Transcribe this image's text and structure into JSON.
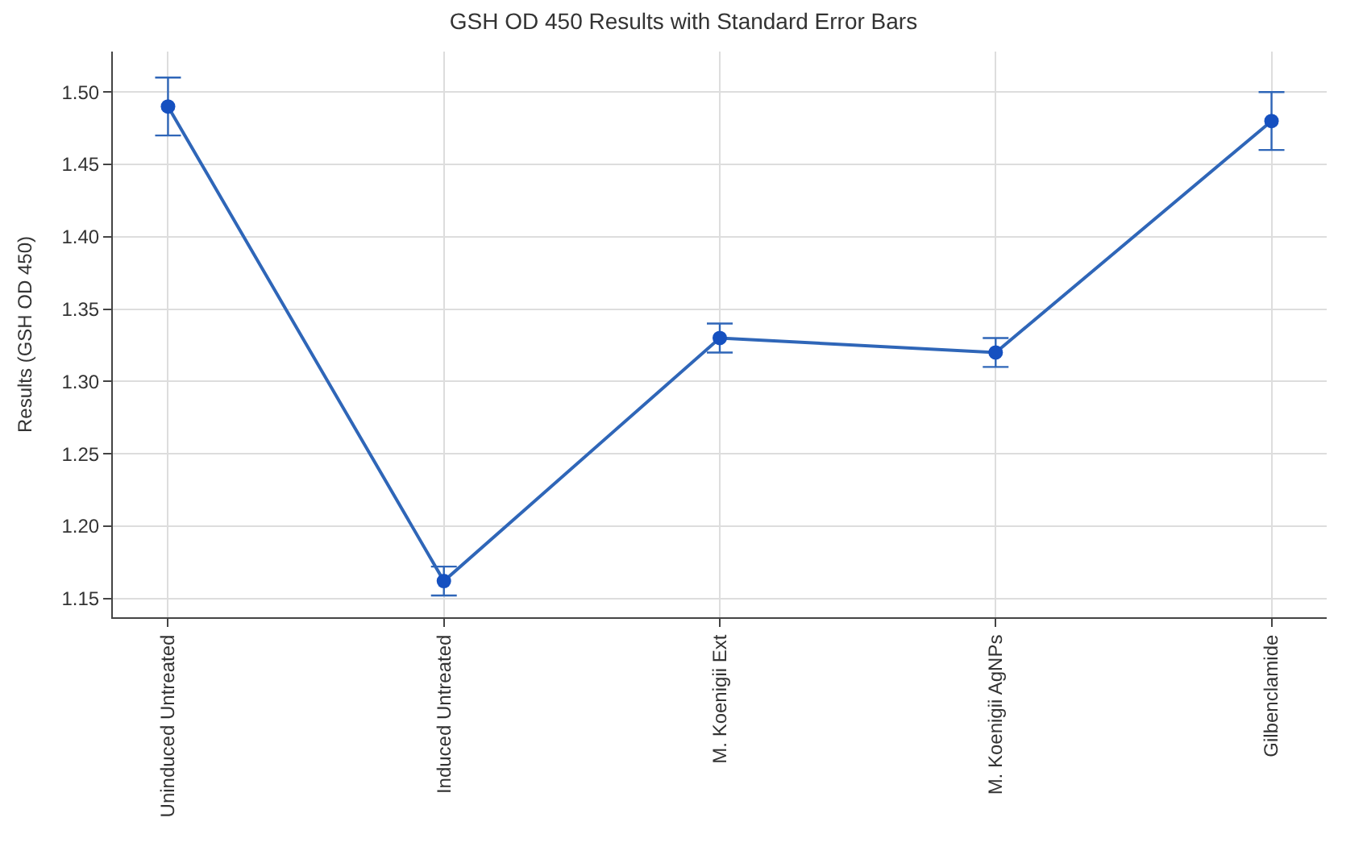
{
  "chart_data": {
    "type": "line",
    "title": "GSH OD 450 Results with Standard Error Bars",
    "ylabel": "Results (GSH OD 450)",
    "categories": [
      "Uninduced Untreated",
      "Induced Untreated",
      "M. Koenigii Ext",
      "M. Koenigii AgNPs",
      "Gilbenclamide"
    ],
    "series": [
      {
        "color": "#2f66b8",
        "values": [
          1.49,
          1.162,
          1.33,
          1.32,
          1.48
        ],
        "errors": [
          0.02,
          0.01,
          0.01,
          0.01,
          0.02
        ]
      }
    ],
    "ylim": [
      1.137,
      1.528
    ],
    "yticks": [
      {
        "value": 1.15,
        "label": "1.15"
      },
      {
        "value": 1.2,
        "label": "1.20"
      },
      {
        "value": 1.25,
        "label": "1.25"
      },
      {
        "value": 1.3,
        "label": "1.30"
      },
      {
        "value": 1.35,
        "label": "1.35"
      },
      {
        "value": 1.4,
        "label": "1.40"
      },
      {
        "value": 1.45,
        "label": "1.45"
      },
      {
        "value": 1.5,
        "label": "1.50"
      }
    ],
    "grid": true,
    "marker": "circle",
    "line_style": "solid"
  }
}
